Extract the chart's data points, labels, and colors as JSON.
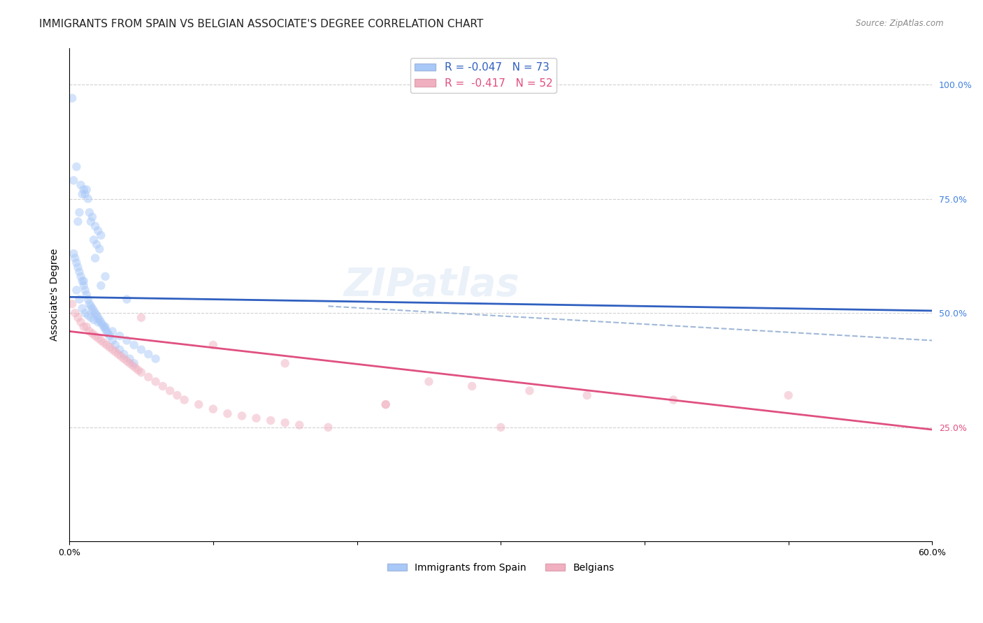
{
  "title": "IMMIGRANTS FROM SPAIN VS BELGIAN ASSOCIATE'S DEGREE CORRELATION CHART",
  "source": "Source: ZipAtlas.com",
  "ylabel": "Associate's Degree",
  "watermark_zip": "ZIP",
  "watermark_atlas": "atlas",
  "blue_scatter_x": [
    0.002,
    0.005,
    0.003,
    0.008,
    0.01,
    0.012,
    0.009,
    0.011,
    0.013,
    0.007,
    0.014,
    0.016,
    0.006,
    0.015,
    0.018,
    0.02,
    0.022,
    0.017,
    0.019,
    0.021,
    0.003,
    0.004,
    0.005,
    0.006,
    0.007,
    0.008,
    0.009,
    0.01,
    0.011,
    0.012,
    0.013,
    0.014,
    0.015,
    0.016,
    0.017,
    0.018,
    0.019,
    0.02,
    0.021,
    0.022,
    0.023,
    0.024,
    0.025,
    0.026,
    0.027,
    0.028,
    0.03,
    0.032,
    0.035,
    0.038,
    0.042,
    0.045,
    0.005,
    0.007,
    0.009,
    0.011,
    0.013,
    0.015,
    0.017,
    0.02,
    0.025,
    0.03,
    0.035,
    0.04,
    0.045,
    0.05,
    0.055,
    0.06,
    0.025,
    0.04,
    0.01,
    0.022,
    0.018
  ],
  "blue_scatter_y": [
    0.97,
    0.82,
    0.79,
    0.78,
    0.77,
    0.77,
    0.76,
    0.76,
    0.75,
    0.72,
    0.72,
    0.71,
    0.7,
    0.7,
    0.69,
    0.68,
    0.67,
    0.66,
    0.65,
    0.64,
    0.63,
    0.62,
    0.61,
    0.6,
    0.59,
    0.58,
    0.57,
    0.56,
    0.55,
    0.54,
    0.53,
    0.52,
    0.515,
    0.51,
    0.505,
    0.5,
    0.495,
    0.49,
    0.485,
    0.48,
    0.475,
    0.47,
    0.465,
    0.46,
    0.455,
    0.45,
    0.44,
    0.43,
    0.42,
    0.41,
    0.4,
    0.39,
    0.55,
    0.53,
    0.51,
    0.5,
    0.495,
    0.49,
    0.485,
    0.48,
    0.47,
    0.46,
    0.45,
    0.44,
    0.43,
    0.42,
    0.41,
    0.4,
    0.58,
    0.53,
    0.57,
    0.56,
    0.62
  ],
  "pink_scatter_x": [
    0.002,
    0.004,
    0.006,
    0.008,
    0.01,
    0.012,
    0.014,
    0.016,
    0.018,
    0.02,
    0.022,
    0.024,
    0.026,
    0.028,
    0.03,
    0.032,
    0.034,
    0.036,
    0.038,
    0.04,
    0.042,
    0.044,
    0.046,
    0.048,
    0.05,
    0.055,
    0.06,
    0.065,
    0.07,
    0.075,
    0.08,
    0.09,
    0.1,
    0.11,
    0.12,
    0.13,
    0.14,
    0.15,
    0.16,
    0.18,
    0.22,
    0.25,
    0.28,
    0.32,
    0.36,
    0.42,
    0.05,
    0.1,
    0.15,
    0.22,
    0.3,
    0.5
  ],
  "pink_scatter_y": [
    0.52,
    0.5,
    0.49,
    0.48,
    0.47,
    0.47,
    0.46,
    0.455,
    0.45,
    0.445,
    0.44,
    0.435,
    0.43,
    0.425,
    0.42,
    0.415,
    0.41,
    0.405,
    0.4,
    0.395,
    0.39,
    0.385,
    0.38,
    0.375,
    0.37,
    0.36,
    0.35,
    0.34,
    0.33,
    0.32,
    0.31,
    0.3,
    0.29,
    0.28,
    0.275,
    0.27,
    0.265,
    0.26,
    0.255,
    0.25,
    0.3,
    0.35,
    0.34,
    0.33,
    0.32,
    0.31,
    0.49,
    0.43,
    0.39,
    0.3,
    0.25,
    0.32
  ],
  "blue_line_x": [
    0.0,
    0.6
  ],
  "blue_line_y": [
    0.535,
    0.505
  ],
  "blue_dashed_line_x": [
    0.18,
    0.6
  ],
  "blue_dashed_line_y": [
    0.515,
    0.44
  ],
  "pink_line_x": [
    0.0,
    0.6
  ],
  "pink_line_y": [
    0.46,
    0.245
  ],
  "xlim": [
    0.0,
    0.6
  ],
  "ylim": [
    0.0,
    1.08
  ],
  "x_ticks": [
    0.0,
    0.1,
    0.2,
    0.3,
    0.4,
    0.5,
    0.6
  ],
  "x_tick_labels": [
    "0.0%",
    "",
    "",
    "",
    "",
    "",
    "60.0%"
  ],
  "y_ticks_right": [
    0.25,
    0.5,
    0.75,
    1.0
  ],
  "y_tick_right_labels": [
    "25.0%",
    "50.0%",
    "75.0%",
    "100.0%"
  ],
  "bg_color": "#ffffff",
  "grid_color": "#cccccc",
  "blue_dot_color": "#a8c8f8",
  "pink_dot_color": "#f0b0c0",
  "blue_line_color": "#3060c0",
  "pink_line_color": "#e05080",
  "blue_dashed_color": "#a0b8d8",
  "right_label_color_blue": "#4080e0",
  "right_label_color_pink": "#e05080",
  "dot_size": 80,
  "dot_alpha": 0.5,
  "title_fontsize": 11,
  "axis_label_fontsize": 10,
  "tick_fontsize": 9
}
